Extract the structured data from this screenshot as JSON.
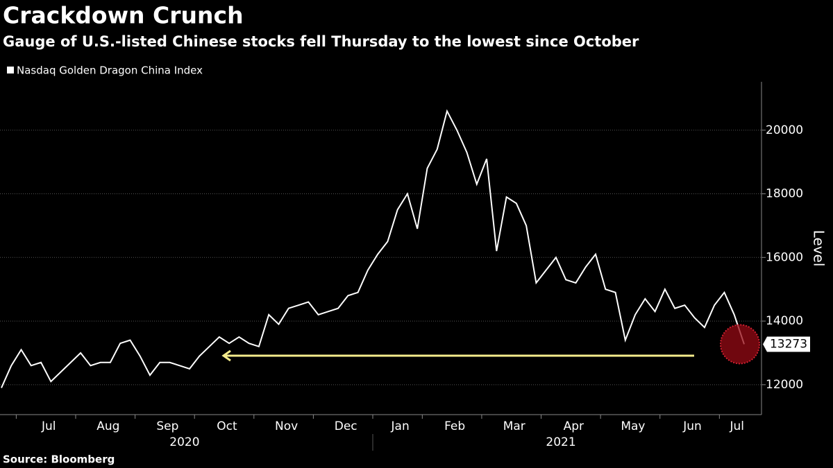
{
  "chart_data": {
    "type": "line",
    "title": "Crackdown Crunch",
    "subtitle": "Gauge of U.S.-listed Chinese stocks fell Thursday to the lowest since October",
    "source": "Source: Bloomberg",
    "y_label": "Level",
    "x": [
      "2020-06",
      "2020-06",
      "2020-07",
      "2020-07",
      "2020-07",
      "2020-07",
      "2020-07",
      "2020-07",
      "2020-08",
      "2020-08",
      "2020-08",
      "2020-08",
      "2020-08",
      "2020-08",
      "2020-09",
      "2020-09",
      "2020-09",
      "2020-09",
      "2020-09",
      "2020-09",
      "2020-10",
      "2020-10",
      "2020-10",
      "2020-10",
      "2020-10",
      "2020-10",
      "2020-11",
      "2020-11",
      "2020-11",
      "2020-11",
      "2020-11",
      "2020-11",
      "2020-12",
      "2020-12",
      "2020-12",
      "2020-12",
      "2020-12",
      "2020-12",
      "2021-01",
      "2021-01",
      "2021-01",
      "2021-01",
      "2021-01",
      "2021-02",
      "2021-02",
      "2021-02",
      "2021-02",
      "2021-02",
      "2021-02",
      "2021-03",
      "2021-03",
      "2021-03",
      "2021-03",
      "2021-03",
      "2021-03",
      "2021-04",
      "2021-04",
      "2021-04",
      "2021-04",
      "2021-04",
      "2021-04",
      "2021-05",
      "2021-05",
      "2021-05",
      "2021-05",
      "2021-05",
      "2021-05",
      "2021-06",
      "2021-06",
      "2021-06",
      "2021-06",
      "2021-06",
      "2021-06",
      "2021-07",
      "2021-07",
      "2021-07"
    ],
    "series": [
      {
        "name": "Nasdaq Golden Dragon China Index",
        "color": "#ffffff",
        "values": [
          11900,
          12600,
          13100,
          12600,
          12700,
          12100,
          12400,
          12700,
          13000,
          12600,
          12700,
          12700,
          13300,
          13400,
          12900,
          12300,
          12700,
          12700,
          12600,
          12500,
          12900,
          13200,
          13500,
          13300,
          13500,
          13300,
          13200,
          14200,
          13900,
          14400,
          14500,
          14600,
          14200,
          14300,
          14400,
          14800,
          14900,
          15600,
          16100,
          16500,
          17500,
          18000,
          16900,
          18800,
          19400,
          20600,
          20000,
          19300,
          18300,
          19100,
          16200,
          17900,
          17700,
          17000,
          15200,
          15600,
          16000,
          15300,
          15200,
          15700,
          16100,
          15000,
          14900,
          13400,
          14200,
          14700,
          14300,
          15000,
          14400,
          14500,
          14100,
          13800,
          14500,
          14900,
          14200,
          13273
        ]
      }
    ],
    "xticks": [
      {
        "value": "2020-07",
        "label": "Jul"
      },
      {
        "value": "2020-08",
        "label": "Aug"
      },
      {
        "value": "2020-09",
        "label": "Sep"
      },
      {
        "value": "2020-10",
        "label": "Oct"
      },
      {
        "value": "2020-11",
        "label": "Nov"
      },
      {
        "value": "2020-12",
        "label": "Dec"
      },
      {
        "value": "2021-01",
        "label": "Jan"
      },
      {
        "value": "2021-02",
        "label": "Feb"
      },
      {
        "value": "2021-03",
        "label": "Mar"
      },
      {
        "value": "2021-04",
        "label": "Apr"
      },
      {
        "value": "2021-05",
        "label": "May"
      },
      {
        "value": "2021-06",
        "label": "Jun"
      },
      {
        "value": "2021-07",
        "label": "Jul"
      }
    ],
    "years": [
      "2020",
      "2021"
    ],
    "ylim": [
      11060,
      21520
    ],
    "yticks": [
      12000,
      14000,
      16000,
      18000,
      20000
    ],
    "grid": true
  }
}
